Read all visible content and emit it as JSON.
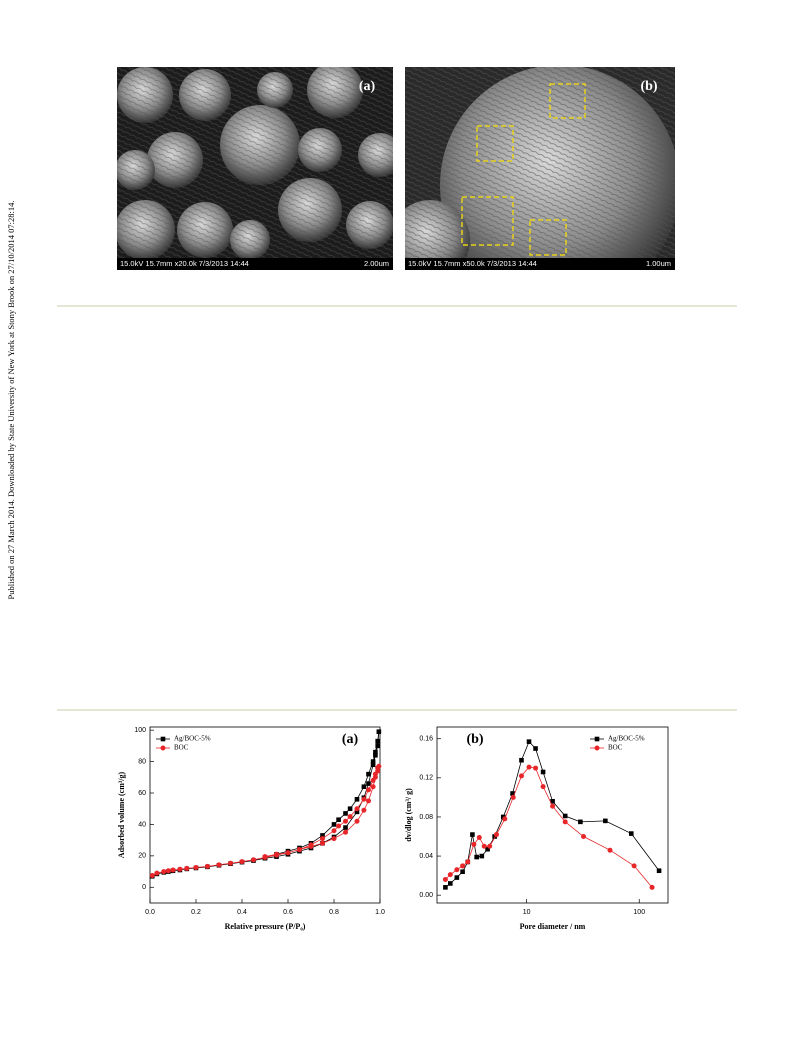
{
  "sidebar": "Published on 27 March 2014. Downloaded by State University of New York at Stony Brook on 27/10/2014 07:28:14.",
  "sem_images": [
    {
      "label": "(a)",
      "info": "15.0kV 15.7mm x20.0k 7/3/2013 14:44",
      "scale": "2.00um"
    },
    {
      "label": "(b)",
      "info": "15.0kV 15.7mm x50.0k 7/3/2013 14:44",
      "scale": "1.00um"
    }
  ],
  "chart_data": [
    {
      "type": "line",
      "annotation": "(a)",
      "x_label": "Relative pressure (P/P₀)",
      "y_label": "Adsorbed volume (cm³/g)",
      "xlim": [
        0,
        1
      ],
      "ylim": [
        -10,
        102
      ],
      "xticks": [
        {
          "value": 0,
          "label": "0.0"
        },
        0.2,
        0.4,
        0.6,
        0.8,
        {
          "value": 1,
          "label": "1.0"
        }
      ],
      "yticks": [
        0,
        20,
        40,
        60,
        80,
        100
      ],
      "legend": "upper left",
      "series": [
        {
          "name": "Ag/BOC-5%",
          "color": "#000000",
          "marker": "square",
          "x": [
            0.01,
            0.03,
            0.06,
            0.08,
            0.1,
            0.13,
            0.16,
            0.2,
            0.25,
            0.3,
            0.35,
            0.4,
            0.45,
            0.5,
            0.55,
            0.6,
            0.65,
            0.7,
            0.75,
            0.8,
            0.85,
            0.9,
            0.93,
            0.95,
            0.97,
            0.98,
            0.99,
            0.995,
            0.99,
            0.98,
            0.97,
            0.95,
            0.93,
            0.9,
            0.87,
            0.85,
            0.82,
            0.8,
            0.75,
            0.7,
            0.65,
            0.6,
            0.55,
            0.5
          ],
          "values": [
            7,
            8.5,
            9.5,
            10,
            10.5,
            11,
            11.7,
            12.3,
            13,
            14,
            15,
            16,
            17,
            18.5,
            19.5,
            21,
            23,
            25,
            28,
            32,
            38,
            48,
            57,
            66,
            78,
            84,
            90,
            99,
            93,
            86,
            80,
            72,
            64,
            56,
            50,
            47,
            43,
            40,
            33,
            28,
            25,
            23,
            21,
            19
          ]
        },
        {
          "name": "BOC",
          "color": "#e8262a",
          "marker": "circle",
          "x": [
            0.01,
            0.03,
            0.06,
            0.08,
            0.1,
            0.13,
            0.16,
            0.2,
            0.25,
            0.3,
            0.35,
            0.4,
            0.45,
            0.5,
            0.55,
            0.6,
            0.65,
            0.7,
            0.75,
            0.8,
            0.85,
            0.9,
            0.93,
            0.95,
            0.97,
            0.98,
            0.99,
            0.995,
            0.99,
            0.98,
            0.97,
            0.95,
            0.93,
            0.9,
            0.87,
            0.85,
            0.82,
            0.8,
            0.75,
            0.7,
            0.65,
            0.6,
            0.55,
            0.5
          ],
          "values": [
            7.5,
            9,
            10,
            10.5,
            11,
            11.5,
            12,
            12.6,
            13.3,
            14.3,
            15.3,
            16.3,
            17.5,
            19,
            20.5,
            22,
            24,
            26,
            28,
            31,
            35,
            42,
            49,
            55,
            64,
            70,
            74,
            77,
            76,
            72,
            68,
            62,
            56,
            50,
            45,
            42,
            39,
            36,
            31,
            27,
            24,
            22,
            21,
            19.5
          ]
        }
      ]
    },
    {
      "type": "line",
      "annotation": "(b)",
      "xscale": "log",
      "x_label": "Pore diameter / nm",
      "y_label": "dv/dlog (cm³/ g)",
      "xlim": [
        1.6,
        180
      ],
      "ylim": [
        -0.008,
        0.172
      ],
      "xticks": [
        10,
        100
      ],
      "yticks": [
        {
          "value": 0,
          "label": "0.00"
        },
        0.04,
        0.08,
        0.12,
        0.16
      ],
      "legend": "upper right",
      "series": [
        {
          "name": "Ag/BOC-5%",
          "color": "#000000",
          "marker": "square",
          "x": [
            1.9,
            2.1,
            2.4,
            2.7,
            3.0,
            3.3,
            3.6,
            4.0,
            4.5,
            5.2,
            6.2,
            7.5,
            9,
            10.5,
            12,
            14,
            17,
            22,
            30,
            50,
            85,
            150
          ],
          "values": [
            0.008,
            0.012,
            0.018,
            0.024,
            0.034,
            0.062,
            0.039,
            0.04,
            0.047,
            0.06,
            0.08,
            0.104,
            0.138,
            0.157,
            0.15,
            0.126,
            0.096,
            0.081,
            0.075,
            0.076,
            0.063,
            0.025
          ]
        },
        {
          "name": "BOC",
          "color": "#e8262a",
          "marker": "circle",
          "x": [
            1.9,
            2.1,
            2.4,
            2.7,
            3.0,
            3.4,
            3.8,
            4.2,
            4.7,
            5.4,
            6.4,
            7.6,
            9,
            10.5,
            12,
            14,
            17,
            22,
            32,
            55,
            90,
            130
          ],
          "values": [
            0.016,
            0.021,
            0.026,
            0.03,
            0.034,
            0.052,
            0.059,
            0.05,
            0.05,
            0.062,
            0.078,
            0.1,
            0.122,
            0.131,
            0.13,
            0.111,
            0.091,
            0.075,
            0.06,
            0.046,
            0.03,
            0.008
          ]
        }
      ]
    }
  ]
}
